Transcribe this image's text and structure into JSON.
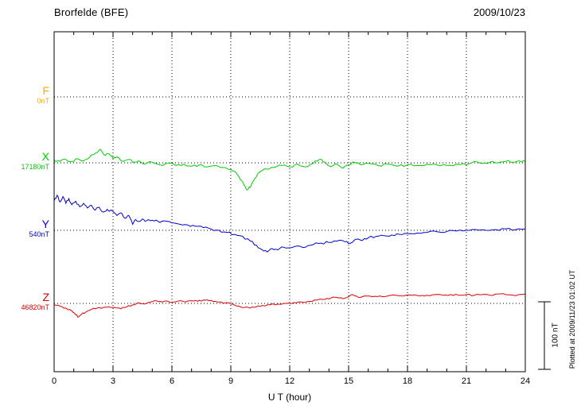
{
  "header": {
    "title": "Brorfelde (BFE)",
    "date": "2009/10/23"
  },
  "footer": {
    "plotted_at": "Plotted at 2009/11/23 01:02 UT"
  },
  "chart_data": {
    "type": "line",
    "title": "Brorfelde (BFE)",
    "date": "2009/10/23",
    "xlabel": "U T (hour)",
    "x_range": [
      0,
      24
    ],
    "x_ticks": [
      0,
      3,
      6,
      9,
      12,
      15,
      18,
      21,
      24
    ],
    "grid": "dotted vertical lines every 3 hours; dotted horizontal line at each component baseline",
    "legend_position": "left margin, one colored label per component",
    "scale_bar": {
      "label": "100 nT",
      "nT": 100
    },
    "series": [
      {
        "name": "F",
        "color": "#FFAA00",
        "baseline_label": "0nT",
        "baseline_nT": 0,
        "jitter_nT": 0,
        "points": []
      },
      {
        "name": "X",
        "color": "#00CC00",
        "baseline_label": "17180nT",
        "baseline_nT": 17180,
        "jitter_nT": 1.8,
        "points": [
          [
            0,
            4
          ],
          [
            0.3,
            2
          ],
          [
            0.6,
            5
          ],
          [
            0.9,
            2
          ],
          [
            1.2,
            6
          ],
          [
            1.5,
            3
          ],
          [
            1.8,
            8
          ],
          [
            2.1,
            14
          ],
          [
            2.35,
            20
          ],
          [
            2.6,
            11
          ],
          [
            2.8,
            13
          ],
          [
            3,
            6
          ],
          [
            3.2,
            9
          ],
          [
            3.5,
            2
          ],
          [
            3.8,
            5
          ],
          [
            4,
            1
          ],
          [
            4.3,
            3
          ],
          [
            4.6,
            -2
          ],
          [
            5,
            1
          ],
          [
            5.4,
            -3
          ],
          [
            5.8,
            -1
          ],
          [
            6.2,
            -4
          ],
          [
            6.6,
            -2
          ],
          [
            7,
            -5
          ],
          [
            7.4,
            -3
          ],
          [
            7.8,
            -6
          ],
          [
            8.2,
            -4
          ],
          [
            8.6,
            -7
          ],
          [
            9,
            -10
          ],
          [
            9.3,
            -16
          ],
          [
            9.6,
            -28
          ],
          [
            9.8,
            -40
          ],
          [
            10,
            -36
          ],
          [
            10.2,
            -24
          ],
          [
            10.5,
            -13
          ],
          [
            10.8,
            -9
          ],
          [
            11.2,
            -7
          ],
          [
            11.6,
            -4
          ],
          [
            12,
            -6
          ],
          [
            12.4,
            -2
          ],
          [
            12.8,
            -6
          ],
          [
            13.2,
            -1
          ],
          [
            13.5,
            5
          ],
          [
            13.8,
            1
          ],
          [
            14.1,
            -6
          ],
          [
            14.4,
            -2
          ],
          [
            14.7,
            -8
          ],
          [
            15,
            -3
          ],
          [
            15.3,
            1
          ],
          [
            15.6,
            -3
          ],
          [
            16,
            -1
          ],
          [
            16.5,
            -4
          ],
          [
            17,
            -2
          ],
          [
            17.5,
            -5
          ],
          [
            18,
            -3
          ],
          [
            18.5,
            -4
          ],
          [
            19,
            -2
          ],
          [
            19.5,
            -3
          ],
          [
            20,
            -4
          ],
          [
            20.5,
            -2
          ],
          [
            21,
            -3
          ],
          [
            21.4,
            2
          ],
          [
            21.8,
            -1
          ],
          [
            22.2,
            1
          ],
          [
            22.6,
            0
          ],
          [
            23,
            2
          ],
          [
            23.4,
            1
          ],
          [
            23.7,
            3
          ],
          [
            24,
            2
          ]
        ]
      },
      {
        "name": "Y",
        "color": "#0000CC",
        "baseline_label": "540nT",
        "baseline_nT": 540,
        "jitter_nT": 1.8,
        "points": [
          [
            0,
            44
          ],
          [
            0.15,
            52
          ],
          [
            0.3,
            42
          ],
          [
            0.45,
            50
          ],
          [
            0.6,
            40
          ],
          [
            0.75,
            47
          ],
          [
            0.9,
            38
          ],
          [
            1.1,
            43
          ],
          [
            1.3,
            35
          ],
          [
            1.5,
            40
          ],
          [
            1.7,
            33
          ],
          [
            1.9,
            37
          ],
          [
            2.1,
            30
          ],
          [
            2.3,
            34
          ],
          [
            2.5,
            27
          ],
          [
            2.7,
            31
          ],
          [
            3,
            28
          ],
          [
            3.2,
            22
          ],
          [
            3.4,
            26
          ],
          [
            3.6,
            18
          ],
          [
            3.8,
            22
          ],
          [
            4,
            9
          ],
          [
            4.15,
            16
          ],
          [
            4.3,
            13
          ],
          [
            4.5,
            17
          ],
          [
            4.7,
            14
          ],
          [
            5,
            15
          ],
          [
            5.3,
            13
          ],
          [
            5.6,
            14
          ],
          [
            6,
            11
          ],
          [
            6.4,
            9
          ],
          [
            6.8,
            8
          ],
          [
            7.2,
            6
          ],
          [
            7.6,
            4
          ],
          [
            8,
            2
          ],
          [
            8.4,
            0
          ],
          [
            8.8,
            -3
          ],
          [
            9.2,
            -6
          ],
          [
            9.6,
            -9
          ],
          [
            10,
            -16
          ],
          [
            10.3,
            -22
          ],
          [
            10.6,
            -29
          ],
          [
            10.85,
            -32
          ],
          [
            11.1,
            -27
          ],
          [
            11.4,
            -29
          ],
          [
            11.7,
            -25
          ],
          [
            12,
            -26
          ],
          [
            12.4,
            -23
          ],
          [
            12.8,
            -25
          ],
          [
            13.2,
            -21
          ],
          [
            13.6,
            -19
          ],
          [
            14,
            -18
          ],
          [
            14.4,
            -16
          ],
          [
            14.8,
            -17
          ],
          [
            15.1,
            -19
          ],
          [
            15.4,
            -13
          ],
          [
            15.7,
            -15
          ],
          [
            16,
            -11
          ],
          [
            16.4,
            -9
          ],
          [
            16.8,
            -8
          ],
          [
            17.2,
            -7
          ],
          [
            17.6,
            -6
          ],
          [
            18,
            -5
          ],
          [
            18.5,
            -4
          ],
          [
            19,
            -3
          ],
          [
            19.5,
            -2
          ],
          [
            20,
            -2
          ],
          [
            20.5,
            -1
          ],
          [
            21,
            0
          ],
          [
            21.5,
            1
          ],
          [
            22,
            0
          ],
          [
            22.5,
            1
          ],
          [
            23,
            2
          ],
          [
            23.5,
            1
          ],
          [
            24,
            2
          ]
        ]
      },
      {
        "name": "Z",
        "color": "#DD0000",
        "baseline_label": "46820nT",
        "baseline_nT": 46820,
        "jitter_nT": 1.2,
        "points": [
          [
            0,
            -2
          ],
          [
            0.3,
            -4
          ],
          [
            0.6,
            -7
          ],
          [
            0.9,
            -11
          ],
          [
            1.1,
            -17
          ],
          [
            1.25,
            -20
          ],
          [
            1.4,
            -16
          ],
          [
            1.6,
            -13
          ],
          [
            1.9,
            -9
          ],
          [
            2.2,
            -7
          ],
          [
            2.5,
            -6
          ],
          [
            2.8,
            -5
          ],
          [
            3.1,
            -6
          ],
          [
            3.4,
            -8
          ],
          [
            3.7,
            -5
          ],
          [
            4,
            -2
          ],
          [
            4.3,
            1
          ],
          [
            4.6,
            -1
          ],
          [
            4.9,
            2
          ],
          [
            5.2,
            4
          ],
          [
            5.5,
            2
          ],
          [
            5.8,
            3
          ],
          [
            6.1,
            2
          ],
          [
            6.4,
            4
          ],
          [
            6.7,
            2
          ],
          [
            7,
            4
          ],
          [
            7.3,
            3
          ],
          [
            7.6,
            5
          ],
          [
            7.9,
            4
          ],
          [
            8.2,
            3
          ],
          [
            8.5,
            2
          ],
          [
            8.8,
            1
          ],
          [
            9.1,
            -1
          ],
          [
            9.4,
            -4
          ],
          [
            9.7,
            -6
          ],
          [
            10,
            -7
          ],
          [
            10.3,
            -5
          ],
          [
            10.6,
            -3
          ],
          [
            11,
            -2
          ],
          [
            11.4,
            -1
          ],
          [
            11.8,
            0
          ],
          [
            12.2,
            1
          ],
          [
            12.6,
            2
          ],
          [
            13,
            3
          ],
          [
            13.4,
            5
          ],
          [
            13.8,
            6
          ],
          [
            14.1,
            8
          ],
          [
            14.4,
            9
          ],
          [
            14.7,
            7
          ],
          [
            15,
            10
          ],
          [
            15.2,
            13
          ],
          [
            15.5,
            9
          ],
          [
            15.8,
            11
          ],
          [
            16.2,
            10
          ],
          [
            16.6,
            11
          ],
          [
            17,
            11
          ],
          [
            17.4,
            12
          ],
          [
            17.8,
            11
          ],
          [
            18.2,
            12
          ],
          [
            18.6,
            11
          ],
          [
            19,
            12
          ],
          [
            19.4,
            13
          ],
          [
            19.8,
            12
          ],
          [
            20.2,
            13
          ],
          [
            20.6,
            12
          ],
          [
            21,
            13
          ],
          [
            21.4,
            12
          ],
          [
            21.8,
            13
          ],
          [
            22.2,
            12
          ],
          [
            22.6,
            14
          ],
          [
            23,
            13
          ],
          [
            23.4,
            12
          ],
          [
            23.7,
            13
          ],
          [
            24,
            14
          ]
        ]
      }
    ]
  }
}
